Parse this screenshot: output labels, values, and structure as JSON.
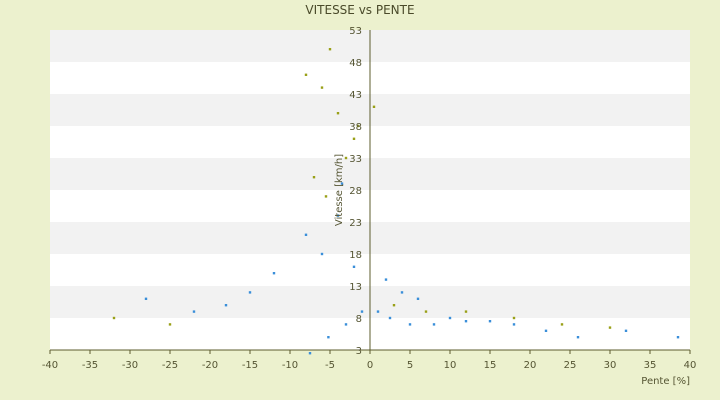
{
  "chart_data": {
    "type": "scatter",
    "title": "VITESSE vs PENTE",
    "xlabel": "Pente [%]",
    "ylabel": "Vitesse [km/h]",
    "xlim": [
      -40,
      40
    ],
    "ylim": [
      3,
      53
    ],
    "x_ticks": [
      "-40",
      "-35",
      "-30",
      "-25",
      "-20",
      "-15",
      "-10",
      "-5",
      "0",
      "5",
      "10",
      "15",
      "20",
      "25",
      "30",
      "35",
      "40"
    ],
    "y_ticks": [
      "3",
      "8",
      "13",
      "18",
      "23",
      "28",
      "33",
      "38",
      "43",
      "48",
      "53"
    ],
    "grid": "horizontal alternating bands",
    "legend": "none",
    "colors": {
      "background": "#ECF1CE",
      "band_light": "#FFFFFF",
      "band_dark": "#F2F2F2",
      "series_a": "#3A8FD9",
      "series_b": "#9AA018",
      "axis": "#5C5C2E"
    },
    "series": [
      {
        "color_key": "series_a",
        "points": [
          [
            -7.5,
            2.5
          ],
          [
            -5.2,
            5.0
          ],
          [
            -3.0,
            7.0
          ],
          [
            -1.0,
            9.0
          ],
          [
            1.0,
            9.0
          ],
          [
            2.5,
            8.0
          ],
          [
            5.0,
            7.0
          ],
          [
            8.0,
            7.0
          ],
          [
            10.0,
            8.0
          ],
          [
            12.0,
            7.5
          ],
          [
            15.0,
            7.5
          ],
          [
            18.0,
            7.0
          ],
          [
            22.0,
            6.0
          ],
          [
            26.0,
            5.0
          ],
          [
            32.0,
            6.0
          ],
          [
            38.5,
            5.0
          ],
          [
            -8.0,
            21.0
          ],
          [
            -6.0,
            18.0
          ],
          [
            -4.0,
            24.0
          ],
          [
            -2.0,
            16.0
          ],
          [
            -3.5,
            29.0
          ],
          [
            -12.0,
            15.0
          ],
          [
            -15.0,
            12.0
          ],
          [
            -18.0,
            10.0
          ],
          [
            -22.0,
            9.0
          ],
          [
            -28.0,
            11.0
          ],
          [
            2.0,
            14.0
          ],
          [
            4.0,
            12.0
          ],
          [
            6.0,
            11.0
          ]
        ]
      },
      {
        "color_key": "series_b",
        "points": [
          [
            -8.0,
            46.0
          ],
          [
            -6.0,
            44.0
          ],
          [
            -5.0,
            50.0
          ],
          [
            -4.0,
            40.0
          ],
          [
            -2.0,
            36.0
          ],
          [
            0.5,
            41.0
          ],
          [
            -7.0,
            30.0
          ],
          [
            -5.5,
            27.0
          ],
          [
            -3.0,
            33.0
          ],
          [
            -1.5,
            38.0
          ],
          [
            -32.0,
            8.0
          ],
          [
            -25.0,
            7.0
          ],
          [
            3.0,
            10.0
          ],
          [
            7.0,
            9.0
          ],
          [
            12.0,
            9.0
          ],
          [
            18.0,
            8.0
          ],
          [
            24.0,
            7.0
          ],
          [
            30.0,
            6.5
          ]
        ]
      }
    ]
  }
}
